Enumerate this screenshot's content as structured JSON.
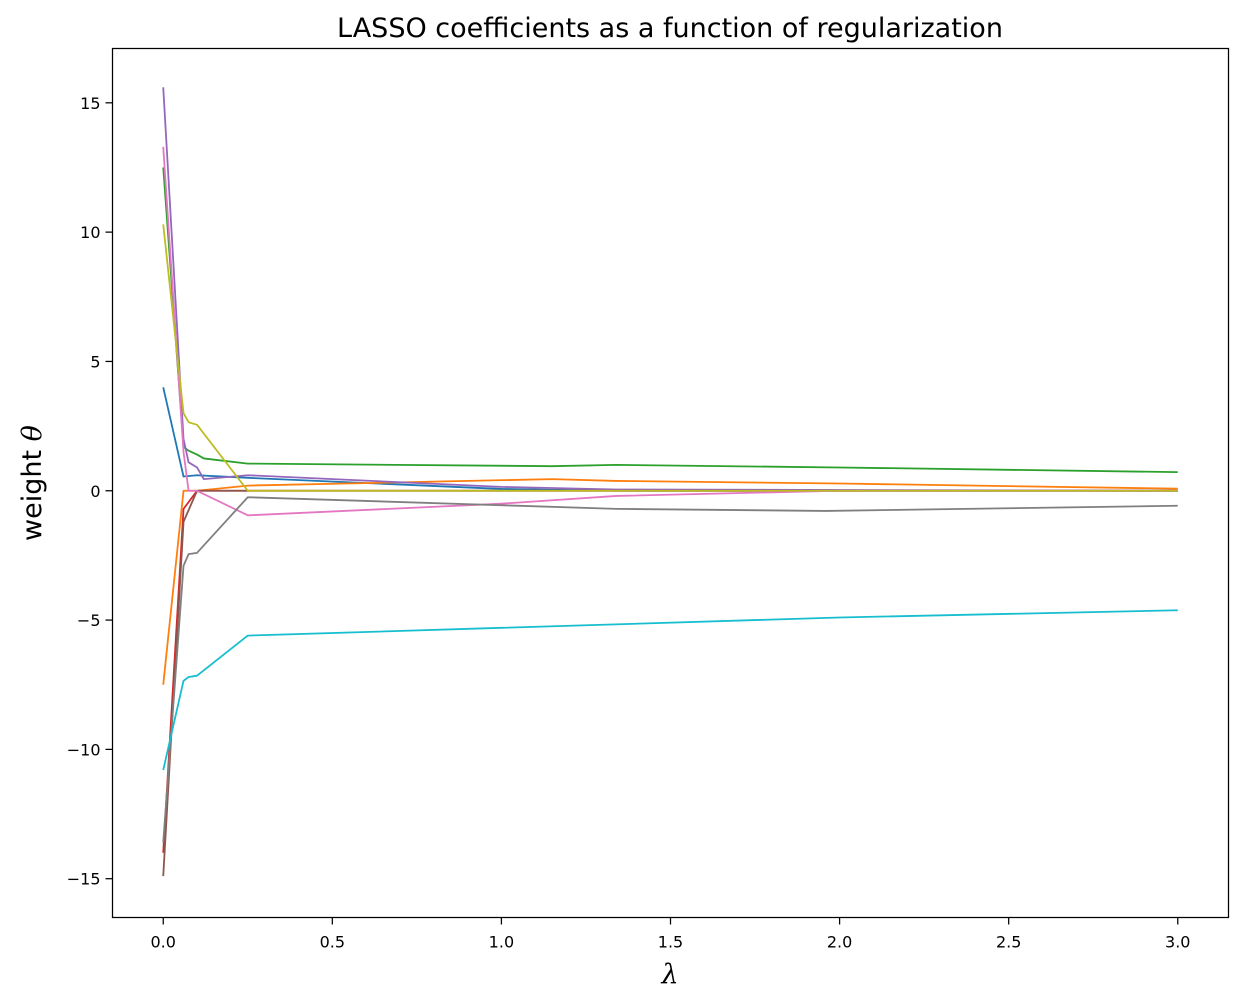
{
  "chart_data": {
    "type": "line",
    "title": "LASSO coefficients as a function of regularization",
    "xlabel": "λ",
    "ylabel_text": "weight ",
    "ylabel_symbol": "θ",
    "xlim": [
      -0.15,
      3.15
    ],
    "ylim": [
      -16.5,
      17.1
    ],
    "xticks": [
      {
        "value": 0.0,
        "label": "0.0"
      },
      {
        "value": 0.5,
        "label": "0.5"
      },
      {
        "value": 1.0,
        "label": "1.0"
      },
      {
        "value": 1.5,
        "label": "1.5"
      },
      {
        "value": 2.0,
        "label": "2.0"
      },
      {
        "value": 2.5,
        "label": "2.5"
      },
      {
        "value": 3.0,
        "label": "3.0"
      }
    ],
    "yticks": [
      {
        "value": 15,
        "label": "15"
      },
      {
        "value": 10,
        "label": "10"
      },
      {
        "value": 5,
        "label": "5"
      },
      {
        "value": 0,
        "label": "0"
      },
      {
        "value": -5,
        "label": "−5"
      },
      {
        "value": -10,
        "label": "−10"
      },
      {
        "value": -15,
        "label": "−15"
      }
    ],
    "grid": false,
    "legend": "none",
    "series": [
      {
        "color": "#1f77b4",
        "x": [
          0.0,
          0.06,
          0.1,
          0.25,
          1.0,
          1.34,
          3.0
        ],
        "y": [
          4.0,
          0.55,
          0.6,
          0.5,
          0.07,
          0.0,
          0.0
        ]
      },
      {
        "color": "#ff7f0e",
        "x": [
          0.0,
          0.06,
          0.1,
          0.25,
          1.15,
          1.34,
          2.0,
          3.0
        ],
        "y": [
          -7.5,
          0.0,
          0.0,
          0.2,
          0.45,
          0.38,
          0.28,
          0.08
        ]
      },
      {
        "color": "#2ca02c",
        "x": [
          0.0,
          0.06,
          0.075,
          0.1,
          0.12,
          0.25,
          1.15,
          1.34,
          2.0,
          3.0
        ],
        "y": [
          12.5,
          1.7,
          1.55,
          1.4,
          1.25,
          1.05,
          0.95,
          1.0,
          0.9,
          0.72
        ]
      },
      {
        "color": "#d62728",
        "x": [
          0.0,
          0.06,
          0.1,
          0.25,
          3.0
        ],
        "y": [
          -14.0,
          -0.7,
          0.0,
          0.0,
          0.0
        ]
      },
      {
        "color": "#9467bd",
        "x": [
          0.0,
          0.06,
          0.075,
          0.1,
          0.12,
          0.25,
          1.0,
          1.34,
          3.0
        ],
        "y": [
          15.6,
          2.0,
          1.1,
          0.9,
          0.45,
          0.6,
          0.15,
          0.05,
          0.0
        ]
      },
      {
        "color": "#8c564b",
        "x": [
          0.0,
          0.06,
          0.1,
          0.25,
          3.0
        ],
        "y": [
          -14.9,
          -1.2,
          0.0,
          0.0,
          0.0
        ]
      },
      {
        "color": "#e377c2",
        "x": [
          0.0,
          0.06,
          0.075,
          0.1,
          0.25,
          1.0,
          1.34,
          2.0,
          3.0
        ],
        "y": [
          13.3,
          1.5,
          0.0,
          0.0,
          -0.95,
          -0.5,
          -0.2,
          0.0,
          0.0
        ]
      },
      {
        "color": "#7f7f7f",
        "x": [
          0.0,
          0.06,
          0.075,
          0.1,
          0.25,
          1.34,
          1.96,
          3.0
        ],
        "y": [
          -13.6,
          -2.9,
          -2.45,
          -2.4,
          -0.25,
          -0.7,
          -0.78,
          -0.58
        ]
      },
      {
        "color": "#bcbd22",
        "x": [
          0.0,
          0.06,
          0.075,
          0.1,
          0.25,
          3.0
        ],
        "y": [
          10.3,
          3.0,
          2.65,
          2.55,
          0.0,
          0.0
        ]
      },
      {
        "color": "#17becf",
        "x": [
          0.0,
          0.06,
          0.075,
          0.1,
          0.25,
          1.0,
          2.0,
          3.0
        ],
        "y": [
          -10.8,
          -7.35,
          -7.2,
          -7.15,
          -5.6,
          -5.3,
          -4.9,
          -4.62
        ]
      }
    ]
  }
}
